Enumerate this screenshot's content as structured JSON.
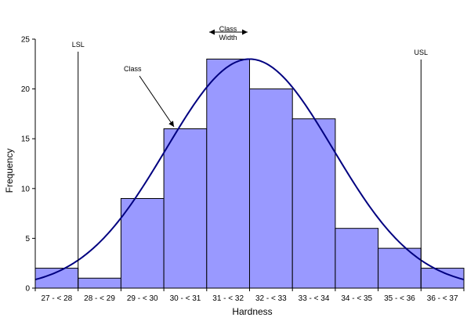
{
  "chart_data": {
    "type": "bar",
    "categories": [
      "27 - < 28",
      "28 - < 29",
      "29 - < 30",
      "30 - < 31",
      "31 - < 32",
      "32 - < 33",
      "33 - < 34",
      "34 - < 35",
      "35 - < 36",
      "36 - < 37"
    ],
    "series": [
      {
        "values": [
          2,
          1,
          9,
          16,
          23,
          20,
          17,
          6,
          4,
          2
        ]
      }
    ],
    "x_bins": [
      27,
      28,
      29,
      30,
      31,
      32,
      33,
      34,
      35,
      36,
      37
    ],
    "title": "",
    "xlabel": "Hardness",
    "ylabel": "Frequency",
    "ylim": [
      0,
      25
    ],
    "yticks": [
      0,
      5,
      10,
      15,
      20,
      25
    ],
    "grid": false,
    "normal_curve": {
      "mean": 32,
      "sd": 1.95,
      "peak": 23
    },
    "spec_limits": [
      {
        "label": "LSL",
        "x": 28
      },
      {
        "label": "USL",
        "x": 36
      }
    ],
    "annotations": {
      "class_label": "Class",
      "class_width_line1": "Class",
      "class_width_line2": "Width"
    },
    "colors": {
      "bar_fill": "#9999ff",
      "bar_stroke": "#000000",
      "curve": "#000080"
    }
  }
}
